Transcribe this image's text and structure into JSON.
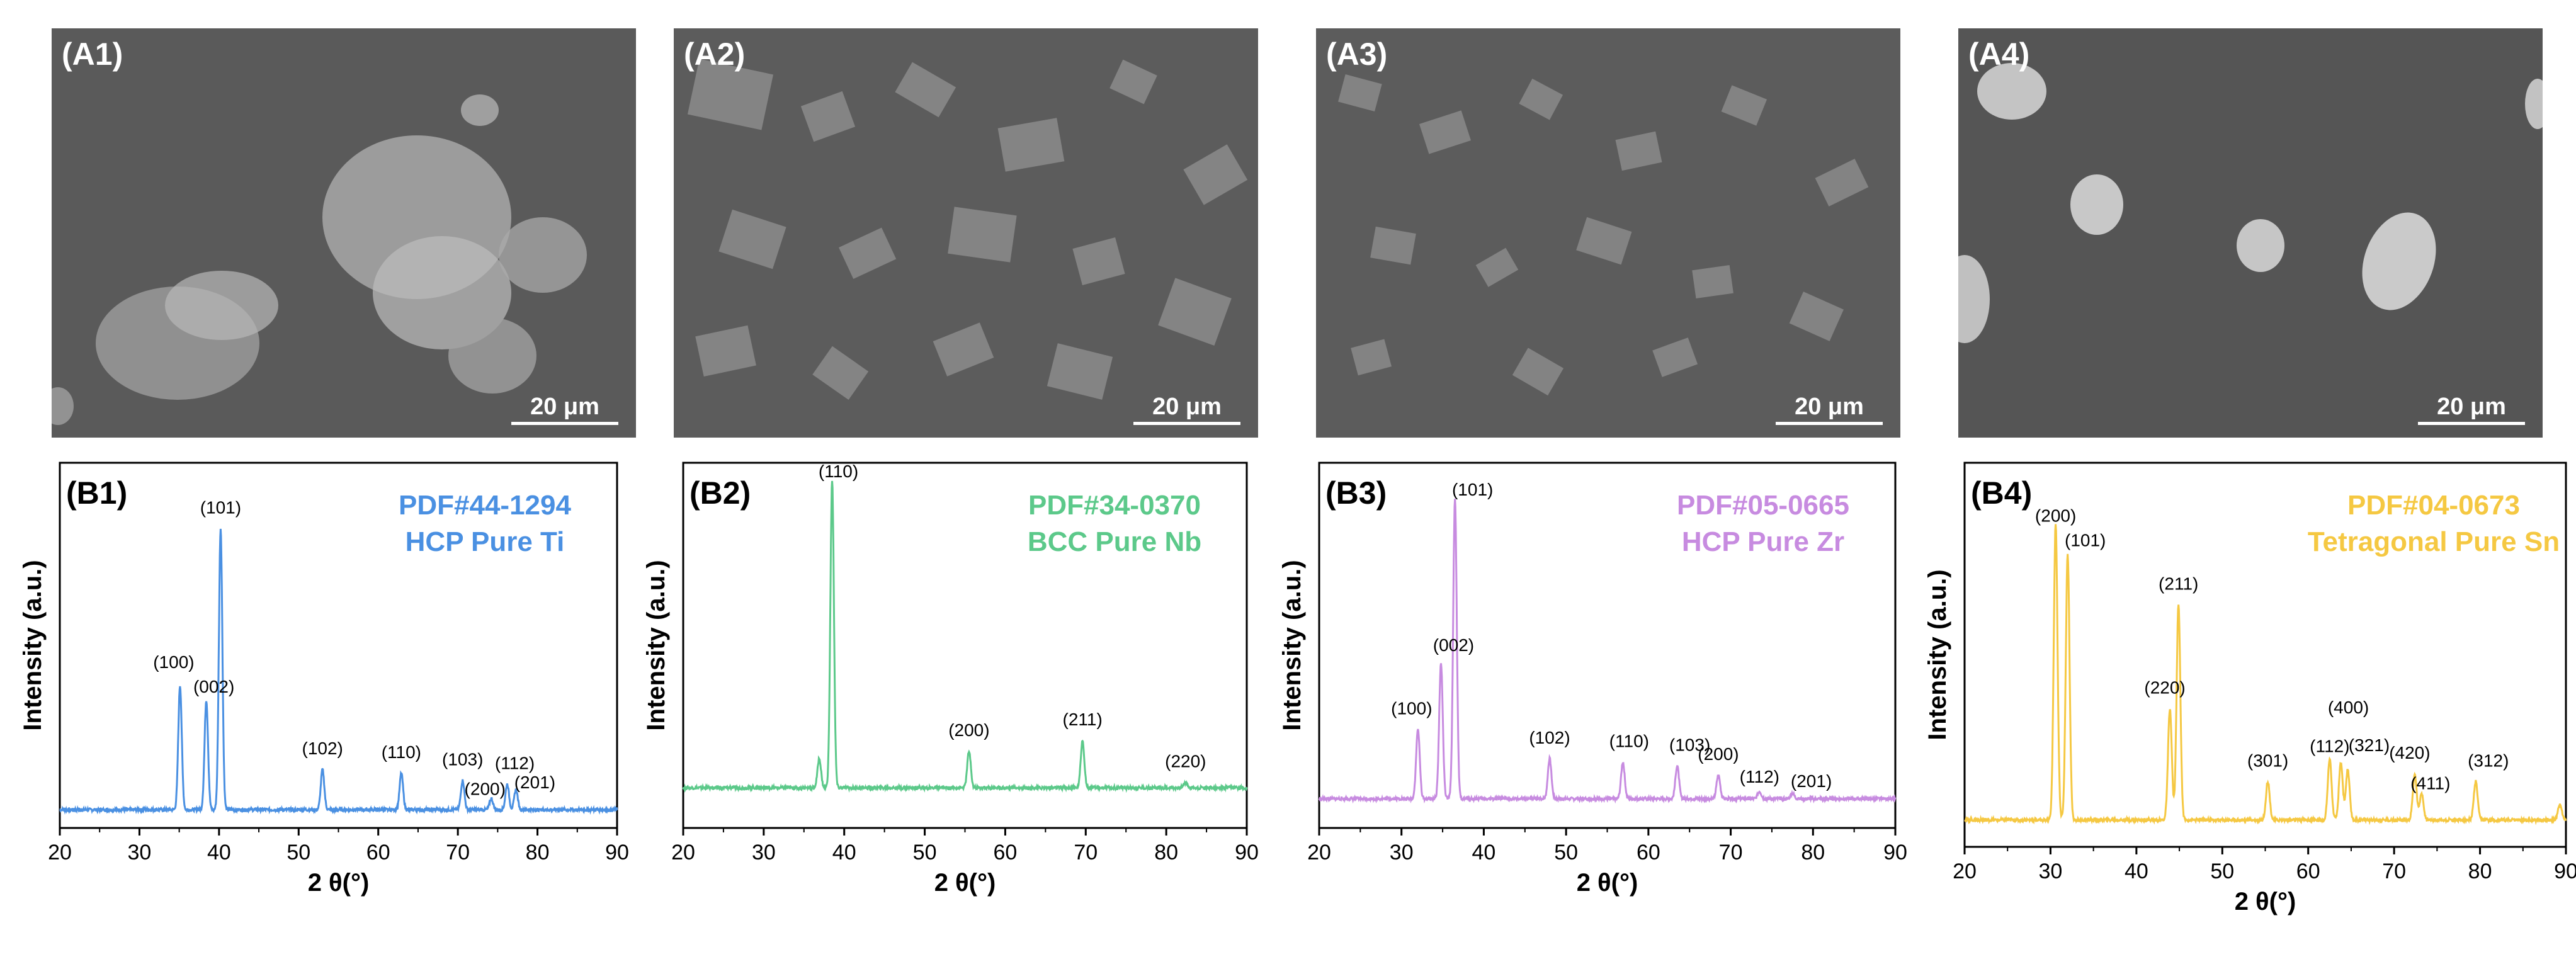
{
  "sem_panels": [
    {
      "label": "(A1)",
      "scale": "20 μm"
    },
    {
      "label": "(A2)",
      "scale": "20 μm"
    },
    {
      "label": "(A3)",
      "scale": "20 μm"
    },
    {
      "label": "(A4)",
      "scale": "20 μm"
    }
  ],
  "chart_data": [
    {
      "type": "line",
      "panel_label": "(B1)",
      "pdf": "PDF#44-1294",
      "phase": "HCP Pure Ti",
      "color": "#4a90e2",
      "xlabel": "2 θ(°)",
      "ylabel": "Intensity (a.u.)",
      "xlim": [
        20,
        90
      ],
      "ylim": [
        0,
        1
      ],
      "xticks": [
        20,
        30,
        40,
        50,
        60,
        70,
        80,
        90
      ],
      "baseline": 0.05,
      "peaks": [
        {
          "x": 35.1,
          "y": 0.34,
          "label": "(100)"
        },
        {
          "x": 38.4,
          "y": 0.3,
          "label": "(002)"
        },
        {
          "x": 40.2,
          "y": 0.77,
          "label": "(101)"
        },
        {
          "x": 53.0,
          "y": 0.11,
          "label": "(102)"
        },
        {
          "x": 62.9,
          "y": 0.1,
          "label": "(110)"
        },
        {
          "x": 70.6,
          "y": 0.08,
          "label": "(103)"
        },
        {
          "x": 76.2,
          "y": 0.07,
          "label": "(112)"
        },
        {
          "x": 77.3,
          "y": 0.055,
          "label": "(201)"
        },
        {
          "x": 74.2,
          "y": 0.03,
          "label": "(200)"
        }
      ]
    },
    {
      "type": "line",
      "panel_label": "(B2)",
      "pdf": "PDF#34-0370",
      "phase": "BCC Pure Nb",
      "color": "#5cc98a",
      "xlabel": "2 θ(°)",
      "ylabel": "Intensity (a.u.)",
      "xlim": [
        20,
        90
      ],
      "ylim": [
        0,
        1
      ],
      "xticks": [
        20,
        30,
        40,
        50,
        60,
        70,
        80,
        90
      ],
      "baseline": 0.11,
      "peaks": [
        {
          "x": 36.9,
          "y": 0.08,
          "label": ""
        },
        {
          "x": 38.5,
          "y": 0.84,
          "label": "(110)"
        },
        {
          "x": 55.5,
          "y": 0.1,
          "label": "(200)"
        },
        {
          "x": 69.6,
          "y": 0.13,
          "label": "(211)"
        },
        {
          "x": 82.4,
          "y": 0.015,
          "label": "(220)"
        }
      ]
    },
    {
      "type": "line",
      "panel_label": "(B3)",
      "pdf": "PDF#05-0665",
      "phase": "HCP Pure Zr",
      "color": "#c78be0",
      "xlabel": "2 θ(°)",
      "ylabel": "Intensity (a.u.)",
      "xlim": [
        20,
        90
      ],
      "ylim": [
        0,
        1
      ],
      "xticks": [
        20,
        30,
        40,
        50,
        60,
        70,
        80,
        90
      ],
      "baseline": 0.08,
      "peaks": [
        {
          "x": 32.0,
          "y": 0.19,
          "label": "(100)"
        },
        {
          "x": 34.8,
          "y": 0.37,
          "label": "(002)"
        },
        {
          "x": 36.5,
          "y": 0.82,
          "label": "(101)"
        },
        {
          "x": 48.0,
          "y": 0.11,
          "label": "(102)"
        },
        {
          "x": 56.9,
          "y": 0.1,
          "label": "(110)"
        },
        {
          "x": 63.5,
          "y": 0.09,
          "label": "(103)"
        },
        {
          "x": 68.5,
          "y": 0.065,
          "label": "(200)"
        },
        {
          "x": 73.5,
          "y": 0.02,
          "label": "(112)"
        },
        {
          "x": 77.5,
          "y": 0.015,
          "label": "(201)"
        }
      ]
    },
    {
      "type": "line",
      "panel_label": "(B4)",
      "pdf": "PDF#04-0673",
      "phase": "Tetragonal Pure Sn",
      "color": "#f5c842",
      "xlabel": "2 θ(°)",
      "ylabel": "Intensity (a.u.)",
      "xlim": [
        20,
        90
      ],
      "ylim": [
        0,
        1
      ],
      "xticks": [
        20,
        30,
        40,
        50,
        60,
        70,
        80,
        90
      ],
      "baseline": 0.07,
      "peaks": [
        {
          "x": 30.6,
          "y": 0.77,
          "label": "(200)"
        },
        {
          "x": 32.0,
          "y": 0.69,
          "label": "(101)"
        },
        {
          "x": 43.9,
          "y": 0.29,
          "label": "(220)"
        },
        {
          "x": 44.9,
          "y": 0.56,
          "label": "(211)"
        },
        {
          "x": 55.3,
          "y": 0.1,
          "label": "(301)"
        },
        {
          "x": 62.5,
          "y": 0.16,
          "label": "(112)"
        },
        {
          "x": 63.8,
          "y": 0.15,
          "label": "(400)"
        },
        {
          "x": 64.6,
          "y": 0.13,
          "label": "(321)"
        },
        {
          "x": 72.4,
          "y": 0.12,
          "label": "(420)"
        },
        {
          "x": 73.2,
          "y": 0.07,
          "label": "(411)"
        },
        {
          "x": 79.5,
          "y": 0.1,
          "label": "(312)"
        },
        {
          "x": 89.3,
          "y": 0.04,
          "label": ""
        }
      ]
    }
  ]
}
